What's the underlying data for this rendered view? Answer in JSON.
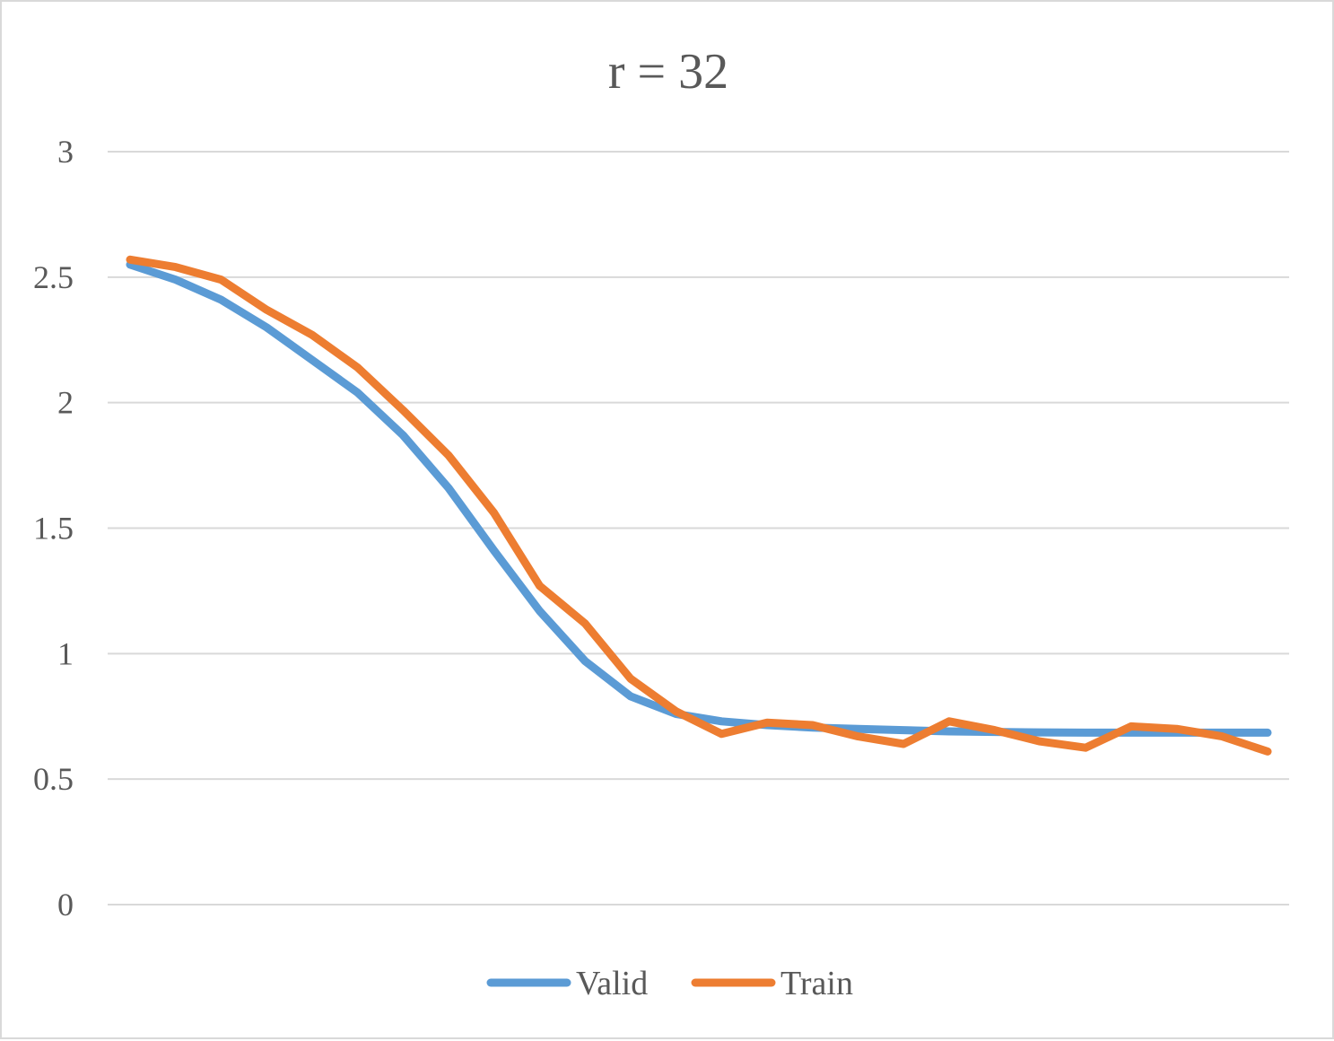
{
  "chart_data": {
    "type": "line",
    "title": "r = 32",
    "xlabel": "",
    "ylabel": "",
    "ylim": [
      0,
      3
    ],
    "yticks": [
      0,
      0.5,
      1,
      1.5,
      2,
      2.5,
      3
    ],
    "ytick_labels": [
      "0",
      "0.5",
      "1",
      "1.5",
      "2",
      "2.5",
      "3"
    ],
    "x": [
      1,
      2,
      3,
      4,
      5,
      6,
      7,
      8,
      9,
      10,
      11,
      12,
      13,
      14,
      15,
      16,
      17,
      18,
      19,
      20,
      21,
      22,
      23,
      24,
      25,
      26
    ],
    "grid": true,
    "legend_position": "bottom",
    "series": [
      {
        "name": "Valid",
        "color": "#5b9bd5",
        "values": [
          2.55,
          2.49,
          2.41,
          2.3,
          2.17,
          2.04,
          1.87,
          1.66,
          1.41,
          1.17,
          0.97,
          0.83,
          0.76,
          0.73,
          0.715,
          0.705,
          0.7,
          0.695,
          0.69,
          0.688,
          0.686,
          0.685,
          0.685,
          0.685,
          0.685,
          0.685
        ]
      },
      {
        "name": "Train",
        "color": "#ed7d31",
        "values": [
          2.57,
          2.54,
          2.49,
          2.37,
          2.27,
          2.14,
          1.97,
          1.79,
          1.56,
          1.27,
          1.12,
          0.9,
          0.77,
          0.68,
          0.725,
          0.715,
          0.67,
          0.64,
          0.73,
          0.695,
          0.65,
          0.625,
          0.71,
          0.7,
          0.67,
          0.61
        ]
      }
    ]
  }
}
